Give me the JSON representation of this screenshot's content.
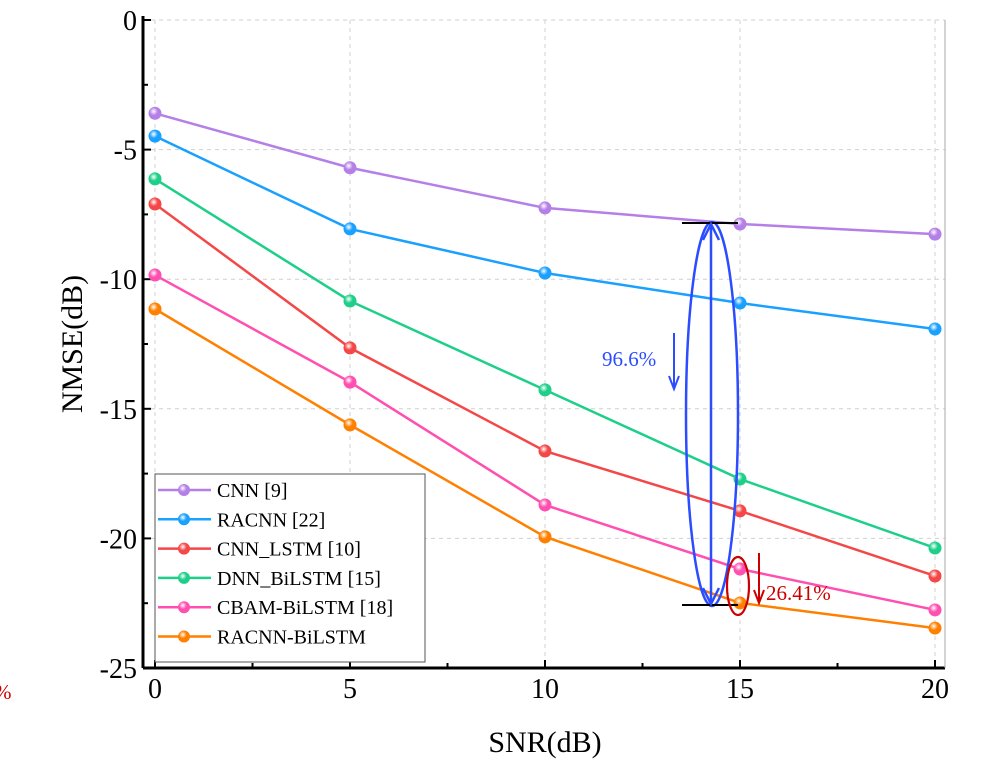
{
  "chart_data": {
    "type": "line",
    "xlabel": "SNR(dB)",
    "ylabel": "NMSE(dB)",
    "xlim": [
      0,
      20
    ],
    "ylim": [
      -25,
      0
    ],
    "xticks": [
      0,
      5,
      10,
      15,
      20
    ],
    "yticks": [
      0,
      -5,
      -10,
      -15,
      -20,
      -25
    ],
    "grid": true,
    "legend_position": "bottom-left",
    "x": [
      0,
      5,
      10,
      15,
      20
    ],
    "series": [
      {
        "name": "CNN [9]",
        "color": "#b57fe8",
        "values": [
          -3.6,
          -5.7,
          -7.25,
          -7.87,
          -8.26
        ]
      },
      {
        "name": "RACNN [22]",
        "color": "#1aa0ff",
        "values": [
          -4.48,
          -8.06,
          -9.76,
          -10.92,
          -11.92
        ]
      },
      {
        "name": "CNN_LSTM [10]",
        "color": "#f44848",
        "values": [
          -7.1,
          -12.65,
          -16.63,
          -18.94,
          -21.45
        ]
      },
      {
        "name": "DNN_BiLSTM [15]",
        "color": "#1ecf8a",
        "values": [
          -6.13,
          -10.84,
          -14.27,
          -17.71,
          -20.37
        ]
      },
      {
        "name": "CBAM-BiLSTM [18]",
        "color": "#ff4fb0",
        "values": [
          -9.84,
          -13.97,
          -18.71,
          -21.18,
          -22.76
        ]
      },
      {
        "name": "RACNN-BiLSTM",
        "color": "#ff8000",
        "values": [
          -11.15,
          -15.62,
          -19.94,
          -22.49,
          -23.46
        ]
      }
    ],
    "annotations": [
      {
        "text": "96.6%",
        "color": "#2b4cff"
      },
      {
        "text": "26.41%",
        "color": "#cc0000"
      },
      {
        "text": "%",
        "color": "#cc0000"
      }
    ]
  }
}
